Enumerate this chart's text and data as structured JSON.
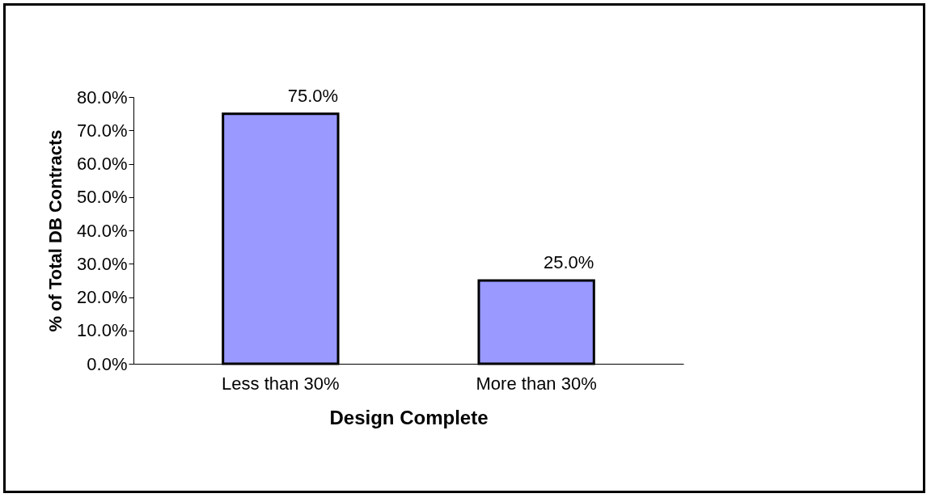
{
  "chart_data": {
    "type": "bar",
    "xlabel": "Design Complete",
    "ylabel": "% of Total DB Contracts",
    "categories": [
      "Less than 30%",
      "More than 30%"
    ],
    "values": [
      75,
      25
    ],
    "value_labels": [
      "75.0%",
      "25.0%"
    ],
    "color": "#9999ff",
    "ylim": [
      0,
      80
    ],
    "yticks": [
      {
        "value": 0,
        "label": "0.0%"
      },
      {
        "value": 10,
        "label": "10.0%"
      },
      {
        "value": 20,
        "label": "20.0%"
      },
      {
        "value": 30,
        "label": "30.0%"
      },
      {
        "value": 40,
        "label": "40.0%"
      },
      {
        "value": 50,
        "label": "50.0%"
      },
      {
        "value": 60,
        "label": "60.0%"
      },
      {
        "value": 70,
        "label": "70.0%"
      },
      {
        "value": 80,
        "label": "80.0%"
      }
    ],
    "grid": false
  }
}
